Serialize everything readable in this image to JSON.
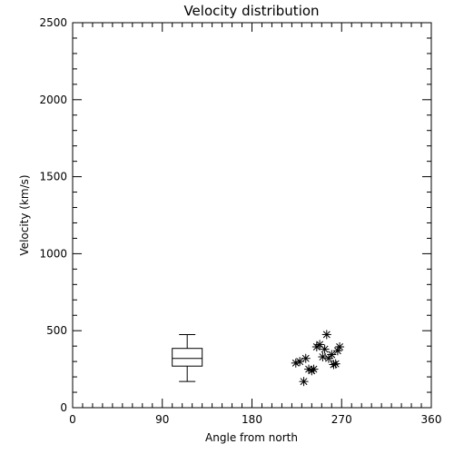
{
  "chart_data": {
    "type": "scatter",
    "title": "Velocity distribution",
    "xlabel": "Angle from north",
    "ylabel": "Velocity (km/s)",
    "xlim": [
      0,
      360
    ],
    "ylim": [
      0,
      2500
    ],
    "xticks": [
      0,
      90,
      180,
      270,
      360
    ],
    "yticks": [
      0,
      500,
      1000,
      1500,
      2000,
      2500
    ],
    "x_minor_step": 10,
    "y_minor_step": 100,
    "grid": false,
    "boxplot": {
      "x": 115,
      "min": 170,
      "q1": 270,
      "median": 320,
      "q3": 385,
      "max": 475
    },
    "points": [
      {
        "x": 224,
        "y": 290
      },
      {
        "x": 228,
        "y": 300
      },
      {
        "x": 232,
        "y": 170
      },
      {
        "x": 234,
        "y": 320
      },
      {
        "x": 237,
        "y": 250
      },
      {
        "x": 240,
        "y": 240
      },
      {
        "x": 242,
        "y": 250
      },
      {
        "x": 245,
        "y": 395
      },
      {
        "x": 248,
        "y": 410
      },
      {
        "x": 251,
        "y": 330
      },
      {
        "x": 253,
        "y": 380
      },
      {
        "x": 255,
        "y": 475
      },
      {
        "x": 257,
        "y": 320
      },
      {
        "x": 260,
        "y": 345
      },
      {
        "x": 262,
        "y": 280
      },
      {
        "x": 264,
        "y": 285
      },
      {
        "x": 266,
        "y": 370
      },
      {
        "x": 268,
        "y": 395
      }
    ]
  }
}
